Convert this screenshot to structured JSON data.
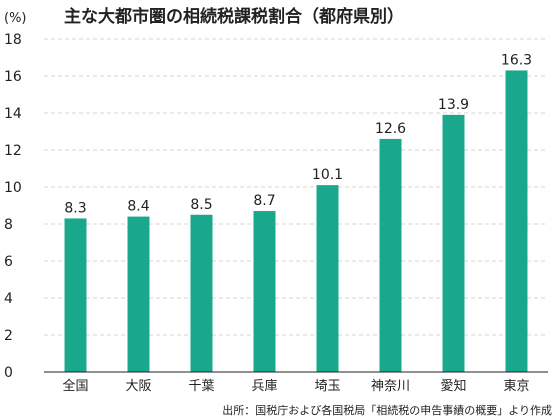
{
  "chart_data": {
    "type": "bar",
    "title": "主な大都市圏の相続税課税割合（都府県別）",
    "ylabel": "(%)",
    "categories": [
      "全国",
      "大阪",
      "千葉",
      "兵庫",
      "埼玉",
      "神奈川",
      "愛知",
      "東京"
    ],
    "values": [
      8.3,
      8.4,
      8.5,
      8.7,
      10.1,
      12.6,
      13.9,
      16.3
    ],
    "value_labels": [
      "8.3",
      "8.4",
      "8.5",
      "8.7",
      "10.1",
      "12.6",
      "13.9",
      "16.3"
    ],
    "ylim": [
      0,
      18
    ],
    "yticks": [
      "0",
      "2",
      "4",
      "6",
      "8",
      "10",
      "12",
      "14",
      "16",
      "18"
    ],
    "grid": true,
    "bar_color": "#1aa88c",
    "source": "出所：国税庁および各国税局「相続税の申告事績の概要」より作成"
  }
}
